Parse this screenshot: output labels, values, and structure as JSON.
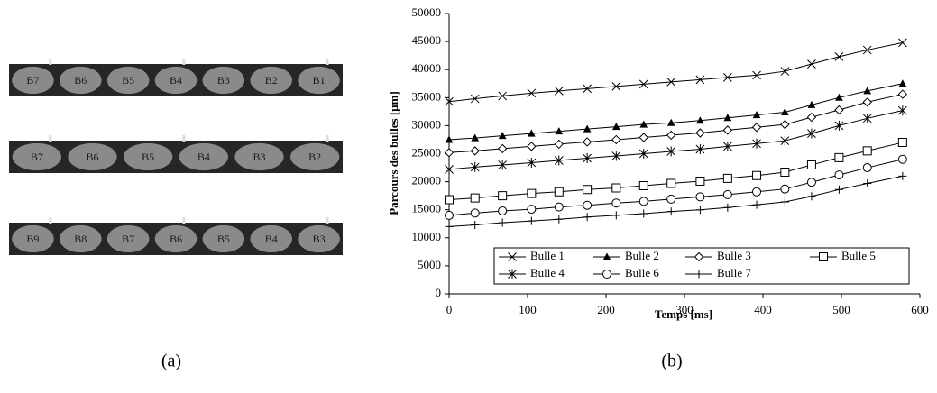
{
  "panel_a": {
    "strips": [
      [
        "B7",
        "B6",
        "B5",
        "B4",
        "B3",
        "B2",
        "B1"
      ],
      [
        "B7",
        "B6",
        "B5",
        "B4",
        "B3",
        "B2"
      ],
      [
        "B9",
        "B8",
        "B7",
        "B6",
        "B5",
        "B4",
        "B3"
      ]
    ],
    "label": "(a)"
  },
  "panel_b_label": "(b)",
  "chart_data": {
    "type": "line",
    "x_label": "Temps [ms]",
    "y_label": "Parcours des bulles [µm]",
    "x": [
      0,
      33,
      68,
      105,
      140,
      176,
      213,
      248,
      283,
      320,
      355,
      392,
      428,
      462,
      497,
      533,
      578
    ],
    "series": [
      {
        "name": "Bulle 1",
        "color": "#000000",
        "marker": "x",
        "values": [
          34300,
          34800,
          35300,
          35800,
          36200,
          36600,
          37000,
          37400,
          37800,
          38200,
          38600,
          39000,
          39700,
          41000,
          42300,
          43500,
          44800
        ]
      },
      {
        "name": "Bulle 2",
        "color": "#000000",
        "marker": "triangle",
        "values": [
          27500,
          27800,
          28200,
          28600,
          29000,
          29400,
          29800,
          30200,
          30500,
          30900,
          31400,
          31900,
          32400,
          33700,
          35000,
          36200,
          37500
        ]
      },
      {
        "name": "Bulle 3",
        "color": "#000000",
        "marker": "diamond",
        "values": [
          25200,
          25500,
          25900,
          26300,
          26700,
          27100,
          27500,
          27900,
          28300,
          28700,
          29200,
          29700,
          30200,
          31500,
          32800,
          34200,
          35600
        ]
      },
      {
        "name": "Bulle 5",
        "color": "#000000",
        "marker": "square",
        "values": [
          16800,
          17100,
          17500,
          17900,
          18200,
          18600,
          18900,
          19300,
          19700,
          20100,
          20600,
          21100,
          21700,
          23000,
          24300,
          25500,
          27000
        ]
      },
      {
        "name": "Bulle 4",
        "color": "#000000",
        "marker": "star",
        "values": [
          22200,
          22600,
          23000,
          23400,
          23800,
          24200,
          24600,
          25000,
          25400,
          25800,
          26300,
          26800,
          27300,
          28600,
          30000,
          31300,
          32700
        ]
      },
      {
        "name": "Bulle 6",
        "color": "#000000",
        "marker": "circle",
        "values": [
          14000,
          14400,
          14800,
          15100,
          15500,
          15800,
          16200,
          16500,
          16900,
          17300,
          17700,
          18200,
          18700,
          19900,
          21200,
          22500,
          24000
        ]
      },
      {
        "name": "Bulle 7",
        "color": "#000000",
        "marker": "plus",
        "values": [
          12000,
          12300,
          12700,
          13000,
          13300,
          13700,
          14000,
          14300,
          14700,
          15000,
          15400,
          15900,
          16400,
          17400,
          18600,
          19700,
          21000
        ]
      }
    ],
    "xlim": [
      0,
      600
    ],
    "xticks": [
      0,
      100,
      200,
      300,
      400,
      500,
      600
    ],
    "ylim": [
      0,
      50000
    ],
    "yticks": [
      0,
      5000,
      10000,
      15000,
      20000,
      25000,
      30000,
      35000,
      40000,
      45000,
      50000
    ],
    "grid": false,
    "legend": "bottom-right"
  }
}
